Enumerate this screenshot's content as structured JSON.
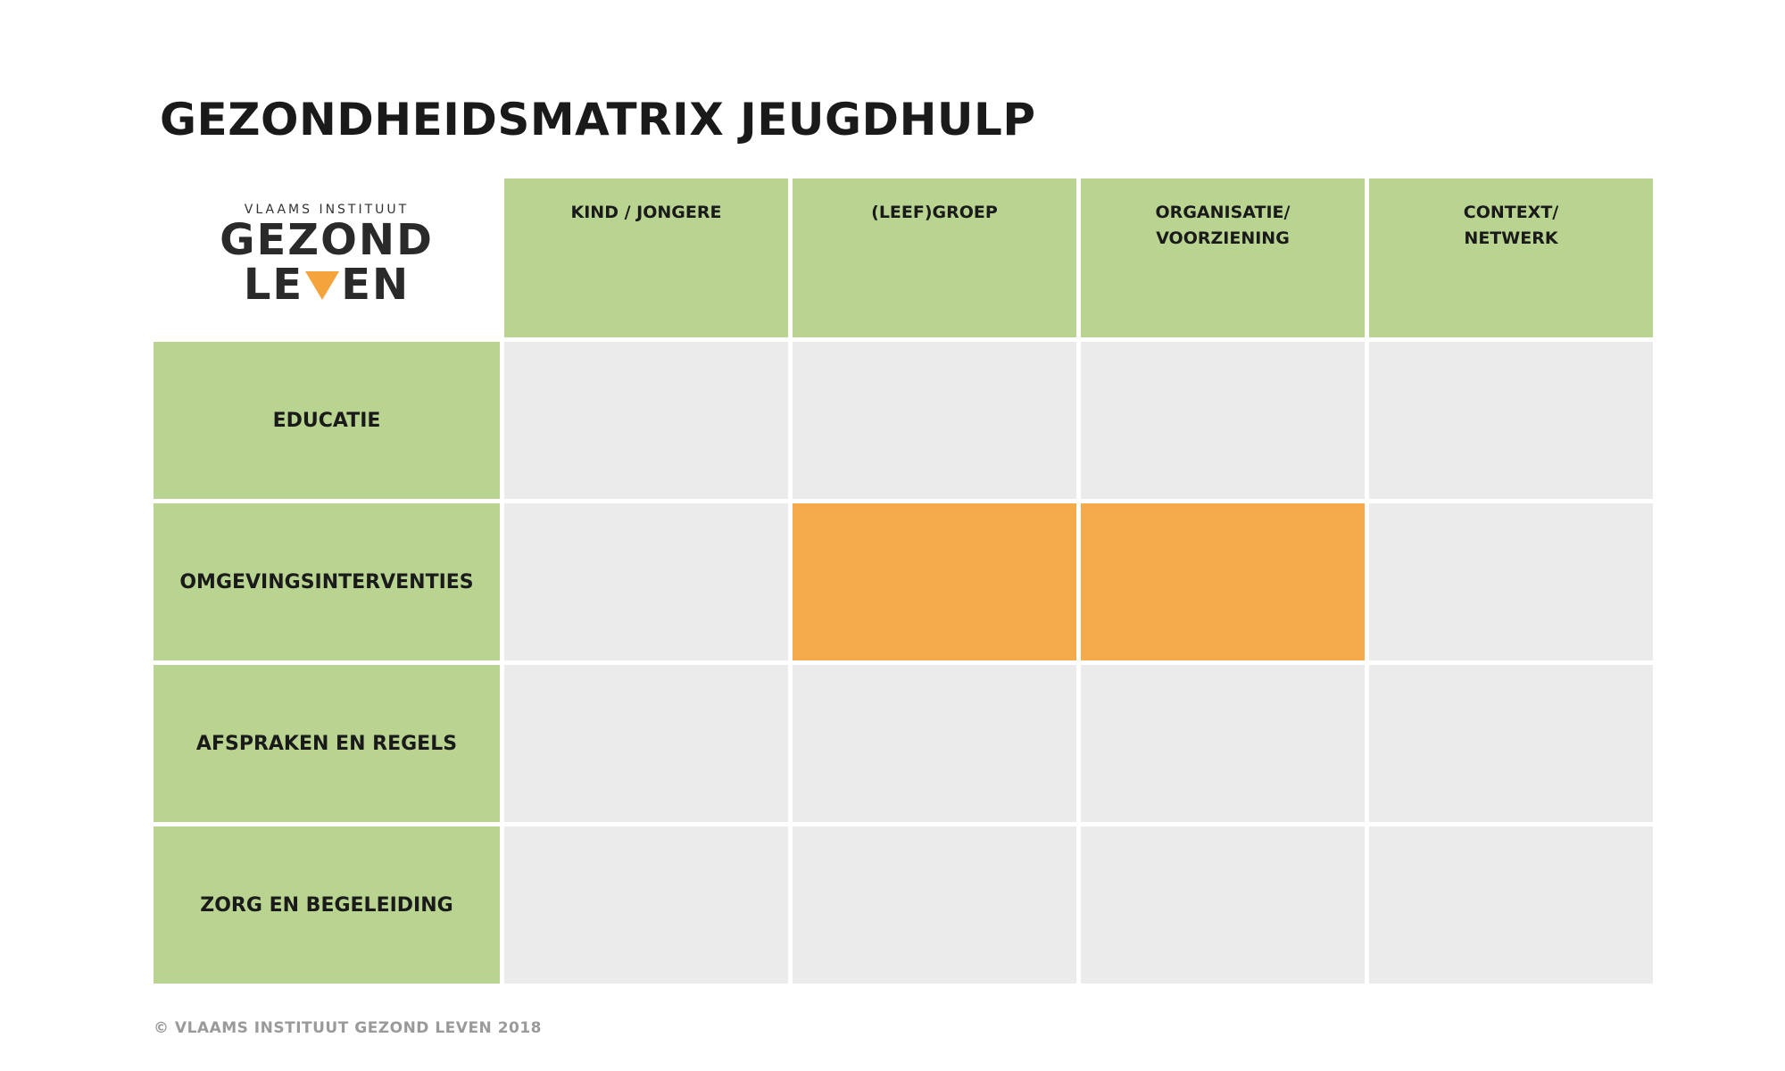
{
  "title": "GEZONDHEIDSMATRIX JEUGDHULP",
  "logo": {
    "line_small": "VLAAMS INSTITUUT",
    "line_big": "GEZOND",
    "line2_left": "LE",
    "line2_right": "EN",
    "triangle_icon": "triangle-down-icon",
    "triangle_color": "#f5a33c"
  },
  "columns": [
    "KIND / JONGERE",
    "(LEEF)GROEP",
    "ORGANISATIE/\nVOORZIENING",
    "CONTEXT/\nNETWERK"
  ],
  "rows": [
    "EDUCATIE",
    "OMGEVINGSINTERVENTIES",
    "AFSPRAKEN EN REGELS",
    "ZORG EN BEGELEIDING"
  ],
  "highlighted_cells": [
    {
      "row": 1,
      "col": 1
    },
    {
      "row": 1,
      "col": 2
    }
  ],
  "colors": {
    "header_green": "#b9d491",
    "cell_gray": "#ebebeb",
    "highlight_orange": "#f5ab4b"
  },
  "footer": "© VLAAMS INSTITUUT GEZOND LEVEN 2018"
}
